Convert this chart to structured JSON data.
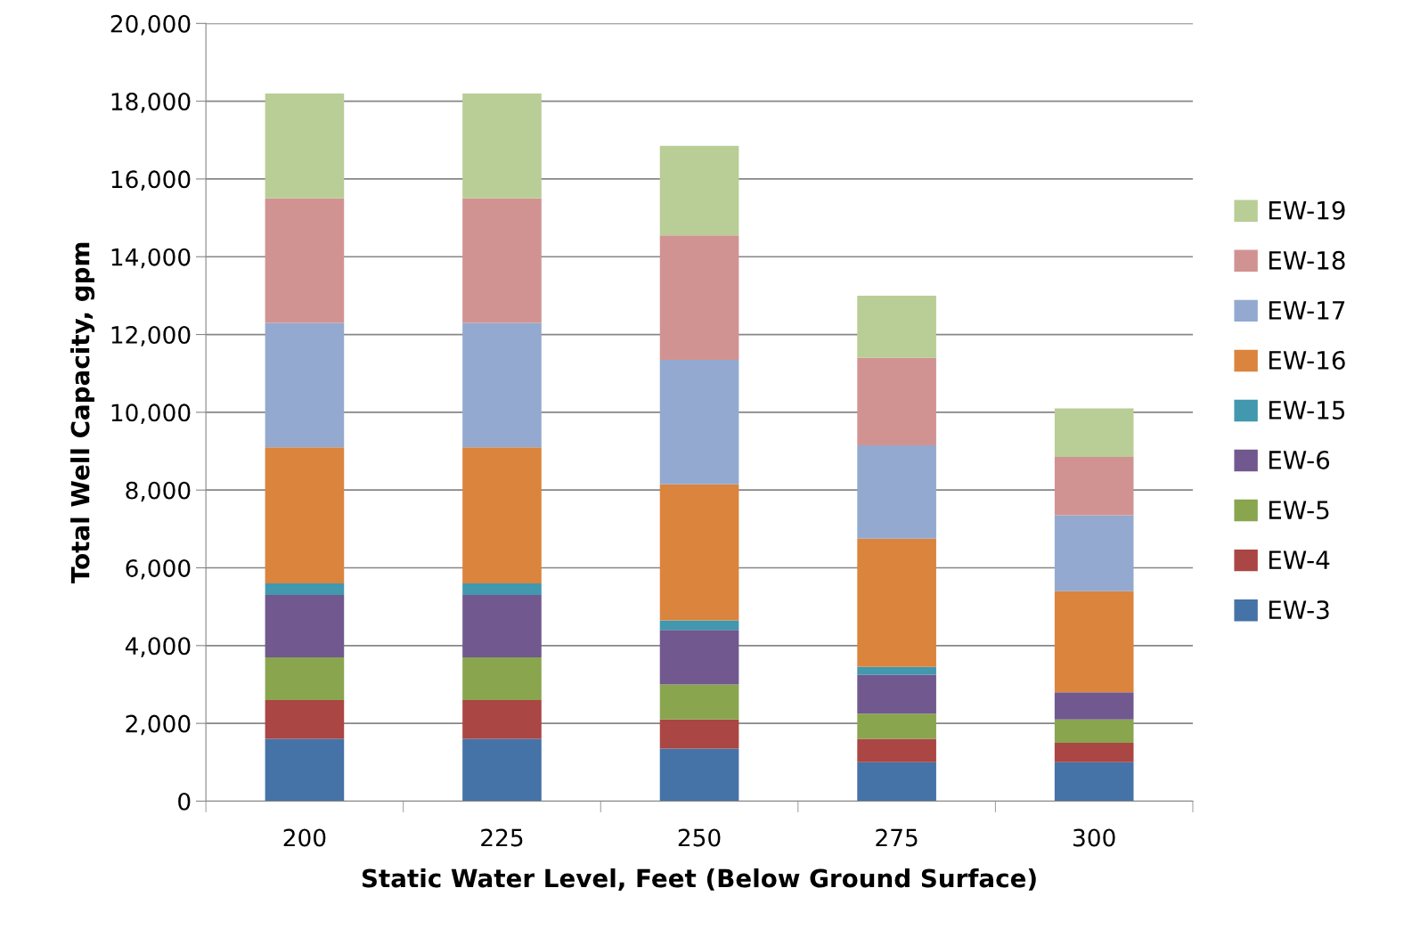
{
  "chart_data": {
    "type": "bar",
    "stacked": true,
    "xlabel": "Static Water Level, Feet (Below Ground Surface)",
    "ylabel": "Total Well Capacity, gpm",
    "categories": [
      "200",
      "225",
      "250",
      "275",
      "300"
    ],
    "series": [
      {
        "name": "EW-3",
        "color": "#4572a7",
        "values": [
          1600,
          1600,
          1350,
          1000,
          1000
        ]
      },
      {
        "name": "EW-4",
        "color": "#aa4643",
        "values": [
          1000,
          1000,
          750,
          600,
          500
        ]
      },
      {
        "name": "EW-5",
        "color": "#89a54e",
        "values": [
          1100,
          1100,
          900,
          650,
          600
        ]
      },
      {
        "name": "EW-6",
        "color": "#71588f",
        "values": [
          1600,
          1600,
          1400,
          1000,
          700
        ]
      },
      {
        "name": "EW-15",
        "color": "#4198af",
        "values": [
          300,
          300,
          250,
          200,
          0
        ]
      },
      {
        "name": "EW-16",
        "color": "#db843d",
        "values": [
          3500,
          3500,
          3500,
          3300,
          2600
        ]
      },
      {
        "name": "EW-17",
        "color": "#93a9cf",
        "values": [
          3200,
          3200,
          3200,
          2400,
          1950
        ]
      },
      {
        "name": "EW-18",
        "color": "#d19392",
        "values": [
          3200,
          3200,
          3200,
          2250,
          1500
        ]
      },
      {
        "name": "EW-19",
        "color": "#b9cd96",
        "values": [
          2700,
          2700,
          2300,
          1600,
          1250
        ]
      }
    ],
    "ylim": [
      0,
      20000
    ],
    "yticks": [
      {
        "value": 0,
        "label": "0"
      },
      {
        "value": 2000,
        "label": "2,000"
      },
      {
        "value": 4000,
        "label": "4,000"
      },
      {
        "value": 6000,
        "label": "6,000"
      },
      {
        "value": 8000,
        "label": "8,000"
      },
      {
        "value": 10000,
        "label": "10,000"
      },
      {
        "value": 12000,
        "label": "12,000"
      },
      {
        "value": 14000,
        "label": "14,000"
      },
      {
        "value": 16000,
        "label": "16,000"
      },
      {
        "value": 18000,
        "label": "18,000"
      },
      {
        "value": 20000,
        "label": "20,000"
      }
    ],
    "grid": "y",
    "legend": "right"
  }
}
